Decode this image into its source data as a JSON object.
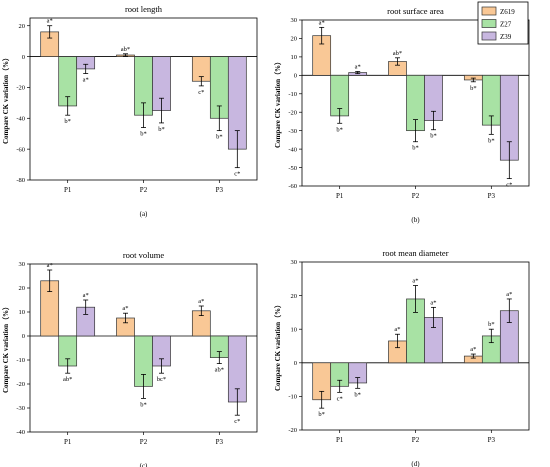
{
  "colors": {
    "Z619": "#f9c896",
    "Z27": "#a8e2a4",
    "Z39": "#c8b7e0",
    "stroke": "#333333"
  },
  "legend": [
    "Z619",
    "Z27",
    "Z39"
  ],
  "chart_data": [
    {
      "type": "bar",
      "title": "root length",
      "panel_label": "(a)",
      "ylabel": "Compare CK variation（%）",
      "categories": [
        "P1",
        "P2",
        "P3"
      ],
      "ylim": [
        -80,
        25
      ],
      "yticks": [
        20,
        0,
        -20,
        -40,
        -60,
        -80
      ],
      "series": [
        {
          "name": "Z619",
          "values": [
            16,
            1,
            -16
          ],
          "errors": [
            4,
            0.8,
            3
          ],
          "labels": [
            "a*",
            "ab*",
            "c*"
          ]
        },
        {
          "name": "Z27",
          "values": [
            -32,
            -38,
            -40
          ],
          "errors": [
            6,
            8,
            8
          ],
          "labels": [
            "b*",
            "b*",
            "b*"
          ]
        },
        {
          "name": "Z39",
          "values": [
            -8,
            -35,
            -60
          ],
          "errors": [
            3,
            8,
            12
          ],
          "labels": [
            "a*",
            "b*",
            "c*"
          ]
        }
      ]
    },
    {
      "type": "bar",
      "title": "root surface area",
      "panel_label": "(b)",
      "ylabel": "Compare CK variation（%）",
      "categories": [
        "P1",
        "P2",
        "P3"
      ],
      "ylim": [
        -60,
        30
      ],
      "yticks": [
        30,
        20,
        10,
        0,
        -10,
        -20,
        -30,
        -40,
        -50,
        -60
      ],
      "series": [
        {
          "name": "Z619",
          "values": [
            21.5,
            7.5,
            -2.5
          ],
          "errors": [
            4.5,
            2,
            1
          ],
          "labels": [
            "a*",
            "ab*",
            "b*"
          ]
        },
        {
          "name": "Z27",
          "values": [
            -22,
            -30,
            -27
          ],
          "errors": [
            4,
            6,
            5
          ],
          "labels": [
            "b*",
            "b*",
            "b*"
          ]
        },
        {
          "name": "Z39",
          "values": [
            1.5,
            -24.5,
            -46
          ],
          "errors": [
            0.6,
            5,
            10
          ],
          "labels": [
            "a*",
            "b*",
            "c*"
          ]
        }
      ]
    },
    {
      "type": "bar",
      "title": "root volume",
      "panel_label": "(c)",
      "ylabel": "Compare CK variation（%）",
      "categories": [
        "P1",
        "P2",
        "P3"
      ],
      "ylim": [
        -40,
        30
      ],
      "yticks": [
        30,
        20,
        10,
        0,
        -10,
        -20,
        -30,
        -40
      ],
      "series": [
        {
          "name": "Z619",
          "values": [
            23,
            7.5,
            10.5
          ],
          "errors": [
            4.5,
            2,
            2
          ],
          "labels": [
            "a*",
            "a*",
            "a*"
          ]
        },
        {
          "name": "Z27",
          "values": [
            -12.5,
            -21,
            -9
          ],
          "errors": [
            3,
            5,
            2.5
          ],
          "labels": [
            "ab*",
            "b*",
            "ab*"
          ]
        },
        {
          "name": "Z39",
          "values": [
            12,
            -12.5,
            -27.5
          ],
          "errors": [
            3,
            3,
            5.5
          ],
          "labels": [
            "a*",
            "bc*",
            "c*"
          ]
        }
      ]
    },
    {
      "type": "bar",
      "title": "root mean diameter",
      "panel_label": "(d)",
      "ylabel": "Compare CK variation（%）",
      "categories": [
        "P1",
        "P2",
        "P3"
      ],
      "ylim": [
        -20,
        30
      ],
      "yticks": [
        30,
        20,
        10,
        0,
        -10,
        -20
      ],
      "series": [
        {
          "name": "Z619",
          "values": [
            -11,
            6.5,
            2
          ],
          "errors": [
            2.5,
            2,
            0.6
          ],
          "labels": [
            "b*",
            "a*",
            "a*"
          ]
        },
        {
          "name": "Z27",
          "values": [
            -7,
            19,
            8
          ],
          "errors": [
            1.8,
            4,
            2
          ],
          "labels": [
            "c*",
            "a*",
            "b*"
          ]
        },
        {
          "name": "Z39",
          "values": [
            -6,
            13.5,
            15.5
          ],
          "errors": [
            1.6,
            3,
            3.5
          ],
          "labels": [
            "b*",
            "a*",
            "a*"
          ]
        }
      ]
    }
  ]
}
